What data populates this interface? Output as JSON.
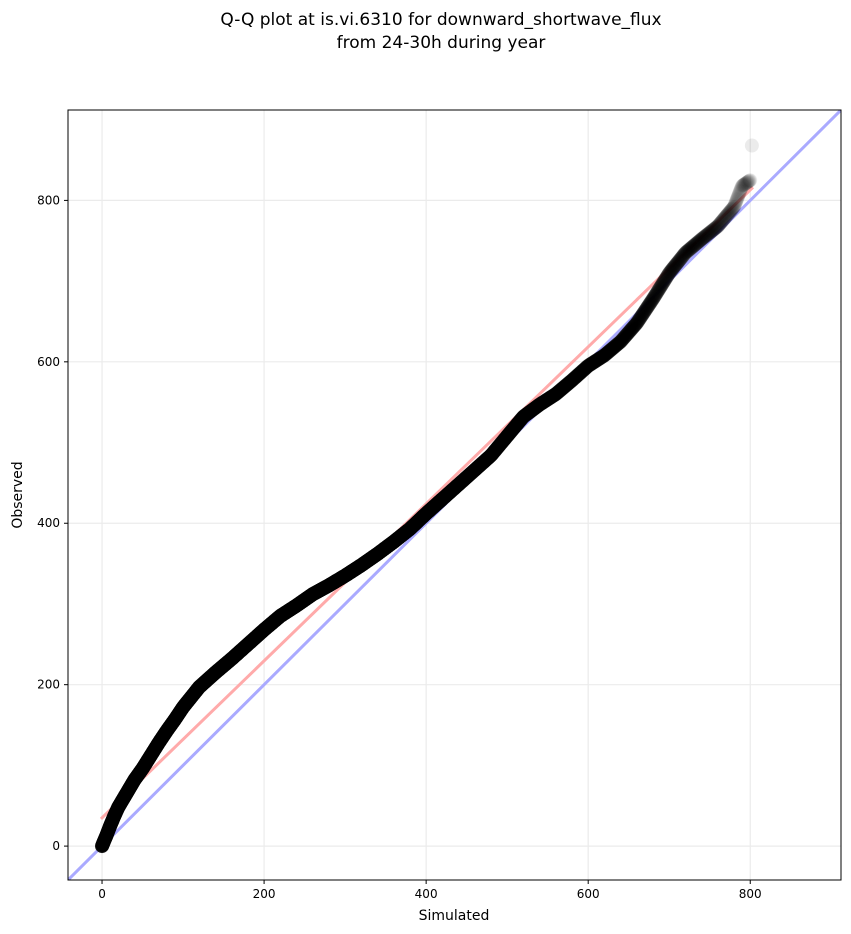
{
  "chart_data": {
    "type": "scatter",
    "title_lines": [
      "Q-Q plot at is.vi.6310 for downward_shortwave_flux",
      "from 24-30h during year"
    ],
    "xlabel": "Simulated",
    "ylabel": "Observed",
    "xlim": [
      -42,
      912
    ],
    "ylim": [
      -42,
      912
    ],
    "xticks": [
      0,
      200,
      400,
      600,
      800
    ],
    "yticks": [
      0,
      200,
      400,
      600,
      800
    ],
    "grid": true,
    "legend": "none",
    "colors": {
      "points": "#000000",
      "identity_line": "#aaaaff",
      "fit_line": "#ffaaaa",
      "grid": "#ebebeb"
    },
    "identity_line": {
      "x": [
        -42,
        912
      ],
      "y": [
        -42,
        912
      ]
    },
    "fit_line": {
      "x": [
        0,
        802
      ],
      "y": [
        35,
        815
      ]
    },
    "qq_curve": {
      "x": [
        0,
        2,
        5,
        10,
        15,
        20,
        30,
        40,
        50,
        60,
        70,
        80,
        90,
        100,
        120,
        140,
        160,
        180,
        200,
        220,
        240,
        260,
        280,
        300,
        320,
        340,
        360,
        380,
        400,
        420,
        440,
        460,
        480,
        500,
        520,
        540,
        560,
        580,
        600,
        620,
        640,
        660,
        680,
        700,
        720,
        740,
        760,
        780,
        790,
        800
      ],
      "y": [
        0,
        5,
        12,
        25,
        37,
        48,
        65,
        82,
        96,
        112,
        128,
        143,
        157,
        172,
        197,
        215,
        232,
        250,
        268,
        285,
        298,
        312,
        323,
        335,
        348,
        362,
        377,
        393,
        412,
        430,
        448,
        466,
        484,
        508,
        532,
        547,
        560,
        577,
        595,
        608,
        625,
        648,
        678,
        710,
        735,
        752,
        768,
        792,
        818,
        825
      ]
    },
    "extra_points": [
      {
        "x": 802,
        "y": 868
      }
    ]
  }
}
